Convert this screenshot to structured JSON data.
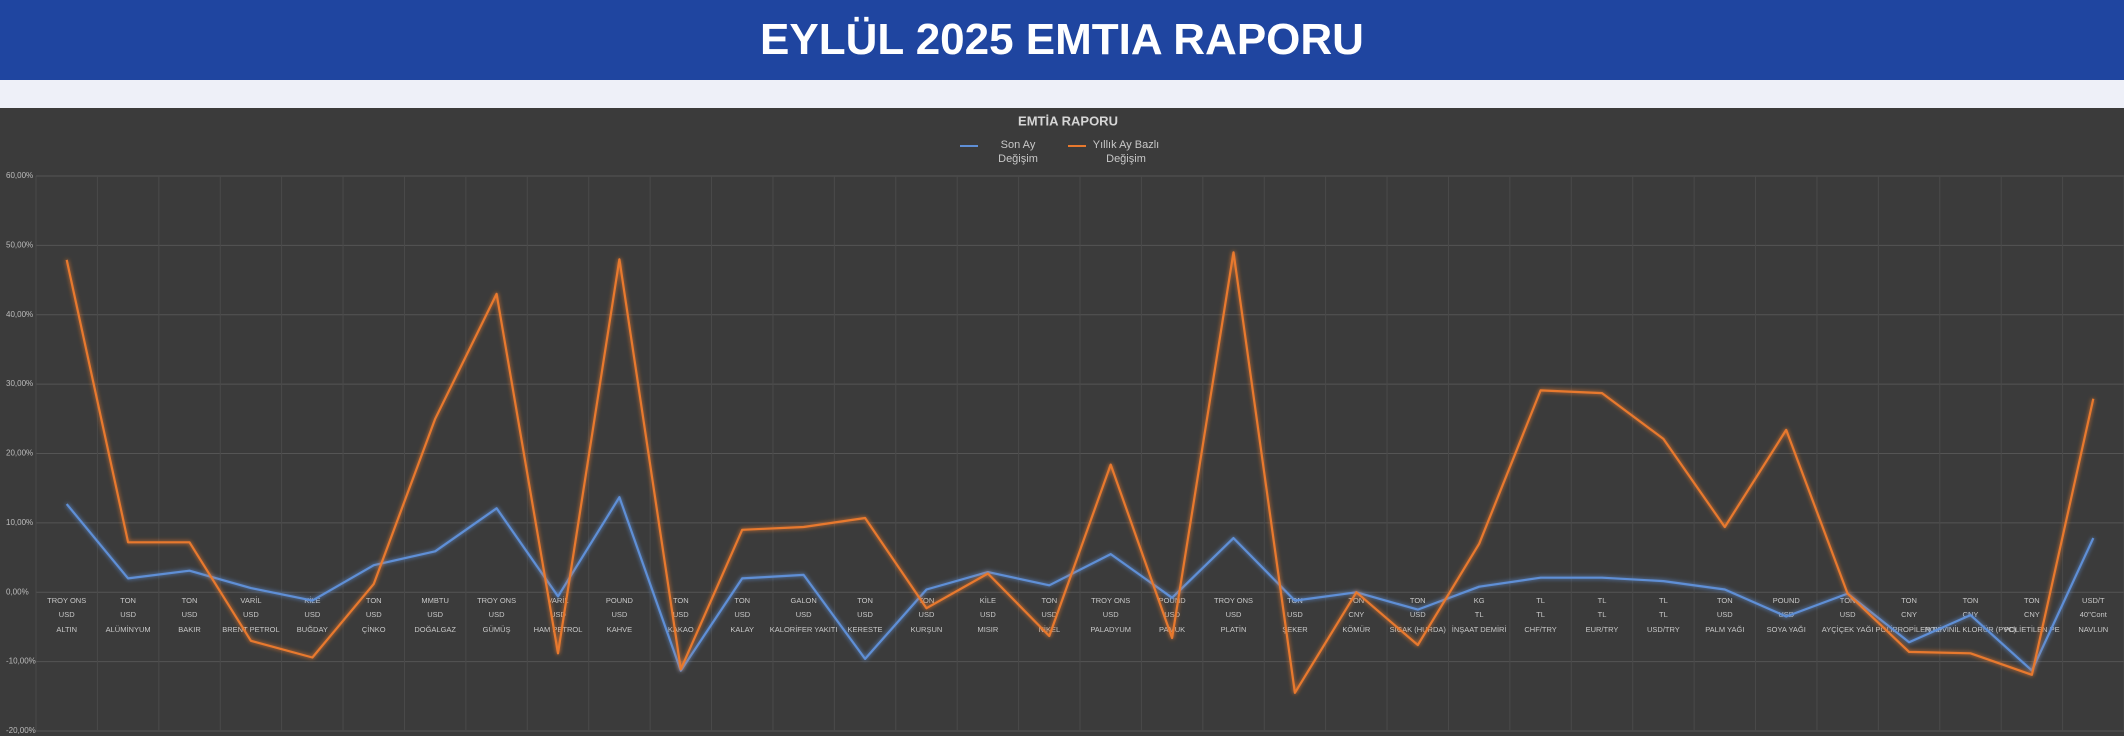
{
  "header": {
    "title": "EYLÜL 2025 EMTIA RAPORU"
  },
  "chart_data": {
    "type": "line",
    "title": "EMTİA RAPORU",
    "categories": [
      "ALTIN",
      "ALÜMİNYUM",
      "BAKIR",
      "BRENT PETROL",
      "BUĞDAY",
      "ÇİNKO",
      "DOĞALGAZ",
      "GÜMÜŞ",
      "HAM PETROL",
      "KAHVE",
      "KAKAO",
      "KALAY",
      "KALORİFER YAKITI",
      "KERESTE",
      "KURŞUN",
      "MISIR",
      "NİKEL",
      "PALADYUM",
      "PAMUK",
      "PLATİN",
      "ŞEKER",
      "KÖMÜR",
      "SICAK (HURDA)",
      "İNŞAAT DEMİRİ",
      "CHF/TRY",
      "EUR/TRY",
      "USD/TRY",
      "PALM YAĞI",
      "SOYA YAĞI",
      "AYÇİÇEK YAĞI",
      "POLİPROPİLEN PP",
      "POLİVİNİL KLORÜR (PVC)",
      "POLİETİLEN PE",
      "NAVLUN"
    ],
    "units": [
      "TROY ONS",
      "TON",
      "TON",
      "VARİL",
      "KİLE",
      "TON",
      "MMBTU",
      "TROY ONS",
      "VARİL",
      "POUND",
      "TON",
      "TON",
      "GALON",
      "TON",
      "TON",
      "KİLE",
      "TON",
      "TROY ONS",
      "POUND",
      "TROY ONS",
      "TON",
      "TON",
      "TON",
      "KG",
      "TL",
      "TL",
      "TL",
      "TON",
      "POUND",
      "TON",
      "TON",
      "TON",
      "TON",
      "USD/T"
    ],
    "currencies": [
      "USD",
      "USD",
      "USD",
      "USD",
      "USD",
      "USD",
      "USD",
      "USD",
      "USD",
      "USD",
      "USD",
      "USD",
      "USD",
      "USD",
      "USD",
      "USD",
      "USD",
      "USD",
      "USD",
      "USD",
      "USD",
      "CNY",
      "USD",
      "TL",
      "TL",
      "TL",
      "TL",
      "USD",
      "USD",
      "USD",
      "CNY",
      "CNY",
      "CNY",
      "40''Cont"
    ],
    "series": [
      {
        "name": "Son Ay Değişim",
        "color": "#5f8fd6",
        "values": [
          12.7,
          2.0,
          3.1,
          0.6,
          -1.2,
          3.9,
          5.9,
          12.1,
          -0.6,
          13.7,
          -11.3,
          2.0,
          2.5,
          -9.6,
          0.4,
          2.9,
          1.0,
          5.5,
          -0.8,
          7.8,
          -1.2,
          0.0,
          -2.5,
          0.8,
          2.1,
          2.1,
          1.6,
          0.4,
          -3.5,
          -0.2,
          -7.2,
          -3.3,
          -11.3,
          7.8
        ]
      },
      {
        "name": "Yıllık Ay Bazlı Değişim",
        "color": "#e8792e",
        "values": [
          47.9,
          7.2,
          7.2,
          -7.0,
          -9.4,
          1.2,
          25.0,
          43.0,
          -8.8,
          48.0,
          -11.1,
          9.0,
          9.4,
          10.7,
          -2.3,
          2.7,
          -6.3,
          18.4,
          -6.6,
          49.0,
          -14.5,
          0.0,
          -7.6,
          7.0,
          29.1,
          28.7,
          22.1,
          9.4,
          23.4,
          -0.2,
          -8.6,
          -8.8,
          -11.9,
          27.9
        ]
      }
    ],
    "ylim": [
      -20,
      60
    ],
    "yticks": [
      {
        "value": -20,
        "label": "-20,00%"
      },
      {
        "value": -10,
        "label": "-10,00%"
      },
      {
        "value": 0,
        "label": "0,00%"
      },
      {
        "value": 10,
        "label": "10,00%"
      },
      {
        "value": 20,
        "label": "20,00%"
      },
      {
        "value": 30,
        "label": "30,00%"
      },
      {
        "value": 40,
        "label": "40,00%"
      },
      {
        "value": 50,
        "label": "50,00%"
      },
      {
        "value": 60,
        "label": "60,00%"
      }
    ],
    "grid": true
  }
}
